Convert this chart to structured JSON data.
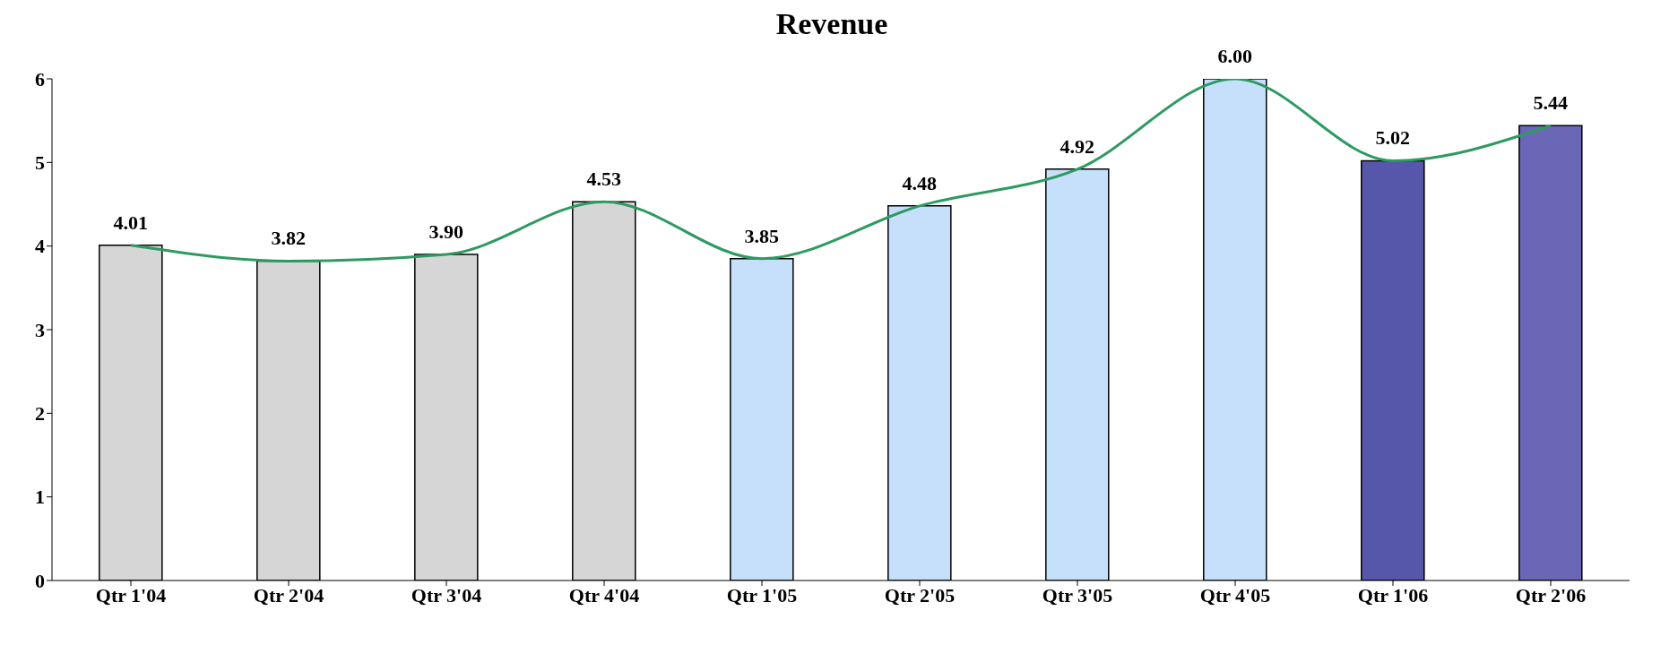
{
  "chart_data": {
    "type": "bar",
    "title": "Revenue",
    "categories": [
      "Qtr 1'04",
      "Qtr 2'04",
      "Qtr 3'04",
      "Qtr 4'04",
      "Qtr 1'05",
      "Qtr 2'05",
      "Qtr 3'05",
      "Qtr 4'05",
      "Qtr 1'06",
      "Qtr 2'06"
    ],
    "series": [
      {
        "colors": [
          "#d6d6d6",
          "#d6d6d6",
          "#d6d6d6",
          "#d6d6d6",
          "#c6e0fb",
          "#c6e0fb",
          "#c6e0fb",
          "#c6e0fb",
          "#5656aa",
          "#6a68b6"
        ],
        "values": [
          4.01,
          3.82,
          3.9,
          4.53,
          3.85,
          4.48,
          4.92,
          6.0,
          5.02,
          5.44
        ],
        "value_labels": [
          "4.01",
          "3.82",
          "3.90",
          "4.53",
          "3.85",
          "4.48",
          "4.92",
          "6.00",
          "5.02",
          "5.44"
        ]
      },
      {
        "type": "line",
        "color": "#2e9a62",
        "values": [
          4.01,
          3.82,
          3.9,
          4.53,
          3.85,
          4.48,
          4.92,
          6.0,
          5.02,
          5.44
        ]
      }
    ],
    "ylim": [
      0,
      6
    ],
    "yticks": [
      0,
      1,
      2,
      3,
      4,
      5,
      6
    ],
    "grid": false,
    "legend": false,
    "marker": "none"
  }
}
